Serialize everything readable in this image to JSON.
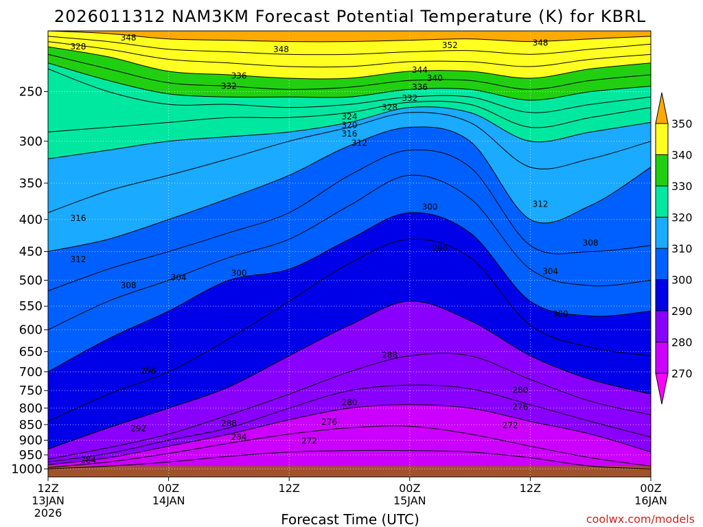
{
  "chart_data": {
    "type": "heatmap",
    "title": "2026011312 NAM3KM Forecast Potential Temperature (K) for KBRL",
    "xlabel": "Forecast Time (UTC)",
    "ylabel": "",
    "credit": "coolwx.com/models",
    "y_scale": "log",
    "y_reversed": true,
    "ylim": [
      1030,
      200
    ],
    "y_ticks": [
      250,
      300,
      350,
      400,
      450,
      500,
      550,
      600,
      650,
      700,
      750,
      800,
      850,
      900,
      950,
      1000
    ],
    "xlim": [
      0,
      60
    ],
    "x_ticks": [
      {
        "x": 0,
        "label": [
          "12Z",
          "13JAN",
          "2026"
        ]
      },
      {
        "x": 12,
        "label": [
          "00Z",
          "14JAN"
        ]
      },
      {
        "x": 24,
        "label": [
          "12Z"
        ]
      },
      {
        "x": 36,
        "label": [
          "00Z",
          "15JAN"
        ]
      },
      {
        "x": 48,
        "label": [
          "12Z"
        ]
      },
      {
        "x": 60,
        "label": [
          "00Z",
          "16JAN"
        ]
      }
    ],
    "grid": true,
    "colorbar": {
      "placement": "right",
      "ticks": [
        270,
        280,
        290,
        300,
        310,
        320,
        330,
        340,
        350
      ],
      "bins": [
        {
          "min": 260,
          "max": 270,
          "color": "#ff00ff"
        },
        {
          "min": 270,
          "max": 280,
          "color": "#cc00ff"
        },
        {
          "min": 280,
          "max": 290,
          "color": "#8a00ff"
        },
        {
          "min": 290,
          "max": 300,
          "color": "#0000e8"
        },
        {
          "min": 300,
          "max": 310,
          "color": "#0060ff"
        },
        {
          "min": 310,
          "max": 320,
          "color": "#1aaaff"
        },
        {
          "min": 320,
          "max": 330,
          "color": "#00e8a0"
        },
        {
          "min": 330,
          "max": 340,
          "color": "#20d010"
        },
        {
          "min": 340,
          "max": 350,
          "color": "#ffff20"
        },
        {
          "min": 350,
          "max": 360,
          "color": "#ffaa00"
        }
      ]
    },
    "ground_color": "#a0522d",
    "ground_top_hpa": 990,
    "surface_points": [
      [
        0,
        985
      ],
      [
        10,
        975
      ],
      [
        20,
        970
      ],
      [
        30,
        968
      ],
      [
        40,
        970
      ],
      [
        50,
        970
      ],
      [
        60,
        975
      ]
    ],
    "isentropes_hpa": [
      {
        "theta": 272,
        "p": [
          1000,
          990,
          975,
          955,
          940,
          935,
          935,
          940,
          960,
          990,
          1000
        ]
      },
      {
        "theta": 276,
        "p": [
          995,
          975,
          945,
          910,
          880,
          860,
          855,
          880,
          920,
          960,
          990
        ]
      },
      {
        "theta": 280,
        "p": [
          985,
          960,
          920,
          880,
          835,
          800,
          790,
          800,
          840,
          880,
          940
        ]
      },
      {
        "theta": 284,
        "p": [
          975,
          945,
          900,
          860,
          800,
          750,
          735,
          745,
          790,
          840,
          890
        ]
      },
      {
        "theta": 288,
        "p": [
          965,
          925,
          880,
          820,
          760,
          700,
          660,
          660,
          720,
          780,
          820
        ]
      },
      {
        "theta": 292,
        "p": [
          930,
          860,
          800,
          740,
          660,
          590,
          540,
          580,
          660,
          720,
          760
        ]
      },
      {
        "theta": 296,
        "p": [
          840,
          760,
          700,
          620,
          540,
          470,
          430,
          460,
          590,
          640,
          660
        ]
      },
      {
        "theta": 300,
        "p": [
          700,
          620,
          560,
          500,
          480,
          430,
          390,
          420,
          540,
          570,
          560
        ]
      },
      {
        "theta": 304,
        "p": [
          600,
          540,
          500,
          460,
          430,
          380,
          340,
          370,
          480,
          510,
          500
        ]
      },
      {
        "theta": 308,
        "p": [
          520,
          480,
          450,
          420,
          390,
          340,
          310,
          330,
          440,
          450,
          440
        ]
      },
      {
        "theta": 312,
        "p": [
          450,
          430,
          400,
          370,
          340,
          305,
          285,
          300,
          400,
          380,
          330
        ]
      },
      {
        "theta": 316,
        "p": [
          390,
          360,
          340,
          320,
          300,
          285,
          270,
          280,
          330,
          320,
          300
        ]
      },
      {
        "theta": 320,
        "p": [
          320,
          310,
          300,
          295,
          290,
          280,
          265,
          270,
          300,
          290,
          280
        ]
      },
      {
        "theta": 324,
        "p": [
          290,
          285,
          280,
          275,
          275,
          270,
          260,
          262,
          285,
          275,
          265
        ]
      },
      {
        "theta": 328,
        "p": [
          230,
          250,
          262,
          262,
          265,
          262,
          255,
          255,
          270,
          262,
          255
        ]
      },
      {
        "theta": 332,
        "p": [
          225,
          240,
          252,
          255,
          255,
          255,
          248,
          248,
          258,
          250,
          245
        ]
      },
      {
        "theta": 336,
        "p": [
          218,
          230,
          242,
          245,
          248,
          246,
          240,
          240,
          248,
          240,
          235
        ]
      },
      {
        "theta": 340,
        "p": [
          212,
          220,
          232,
          235,
          238,
          238,
          232,
          232,
          238,
          230,
          225
        ]
      },
      {
        "theta": 344,
        "p": [
          208,
          214,
          222,
          225,
          228,
          228,
          224,
          224,
          228,
          222,
          218
        ]
      },
      {
        "theta": 348,
        "p": [
          204,
          208,
          214,
          216,
          218,
          218,
          216,
          215,
          218,
          214,
          210
        ]
      },
      {
        "theta": 352,
        "p": [
          200,
          202,
          206,
          207,
          208,
          208,
          207,
          206,
          208,
          206,
          204
        ]
      }
    ],
    "contour_labels": [
      {
        "text": "348",
        "x": 8.0,
        "p": 205
      },
      {
        "text": "328",
        "x": 3.0,
        "p": 212
      },
      {
        "text": "348",
        "x": 23.2,
        "p": 214
      },
      {
        "text": "352",
        "x": 40.0,
        "p": 211
      },
      {
        "text": "348",
        "x": 49.0,
        "p": 209
      },
      {
        "text": "344",
        "x": 37.0,
        "p": 231
      },
      {
        "text": "336",
        "x": 19.0,
        "p": 236
      },
      {
        "text": "340",
        "x": 38.5,
        "p": 238
      },
      {
        "text": "332",
        "x": 18.0,
        "p": 245
      },
      {
        "text": "336",
        "x": 37.0,
        "p": 246
      },
      {
        "text": "332",
        "x": 36.0,
        "p": 256
      },
      {
        "text": "328",
        "x": 34.0,
        "p": 265
      },
      {
        "text": "324",
        "x": 30.0,
        "p": 274
      },
      {
        "text": "320",
        "x": 30.0,
        "p": 283
      },
      {
        "text": "316",
        "x": 30.0,
        "p": 292
      },
      {
        "text": "312",
        "x": 31.0,
        "p": 302
      },
      {
        "text": "312",
        "x": 49.0,
        "p": 378
      },
      {
        "text": "316",
        "x": 3.0,
        "p": 398
      },
      {
        "text": "300",
        "x": 38.0,
        "p": 382
      },
      {
        "text": "296",
        "x": 39.0,
        "p": 444
      },
      {
        "text": "312",
        "x": 3.0,
        "p": 463
      },
      {
        "text": "308",
        "x": 54.0,
        "p": 436
      },
      {
        "text": "300",
        "x": 19.0,
        "p": 487
      },
      {
        "text": "304",
        "x": 13.0,
        "p": 495
      },
      {
        "text": "304",
        "x": 50.0,
        "p": 484
      },
      {
        "text": "308",
        "x": 8.0,
        "p": 510
      },
      {
        "text": "300",
        "x": 51.0,
        "p": 566
      },
      {
        "text": "296",
        "x": 10.0,
        "p": 698
      },
      {
        "text": "288",
        "x": 34.0,
        "p": 658
      },
      {
        "text": "280",
        "x": 47.0,
        "p": 749
      },
      {
        "text": "280",
        "x": 30.0,
        "p": 783
      },
      {
        "text": "276",
        "x": 47.0,
        "p": 796
      },
      {
        "text": "288",
        "x": 18.0,
        "p": 846
      },
      {
        "text": "276",
        "x": 28.0,
        "p": 842
      },
      {
        "text": "292",
        "x": 9.0,
        "p": 862
      },
      {
        "text": "272",
        "x": 46.0,
        "p": 853
      },
      {
        "text": "284",
        "x": 19.0,
        "p": 890
      },
      {
        "text": "272",
        "x": 26.0,
        "p": 902
      },
      {
        "text": "284",
        "x": 4.0,
        "p": 968
      }
    ]
  }
}
